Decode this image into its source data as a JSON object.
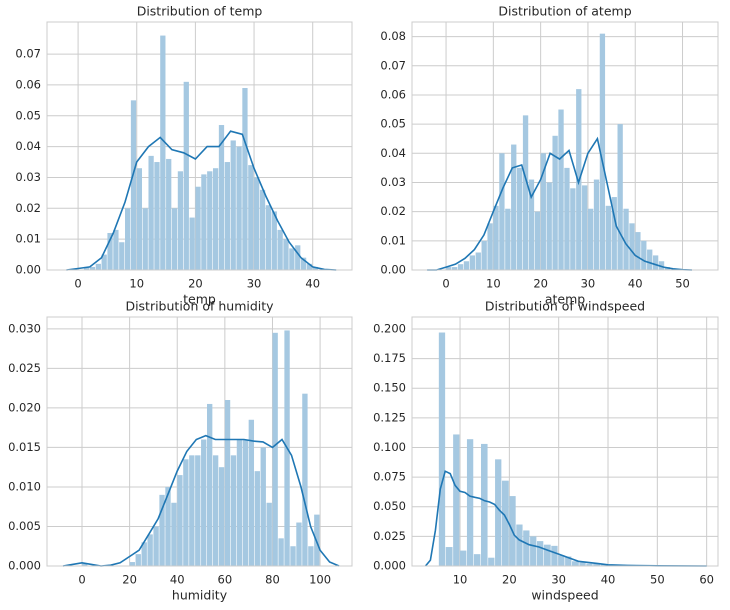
{
  "chart_data": [
    {
      "type": "histogram",
      "title": "Distribution of temp",
      "xlabel": "temp",
      "color": "#a5c8e1",
      "line_color": "#1f77b4",
      "grid": true,
      "xlim": [
        -5.3,
        46.7
      ],
      "ylim": [
        0,
        0.0804
      ],
      "xticks": [
        0,
        10,
        20,
        30,
        40
      ],
      "yticks": [
        {
          "value": 0,
          "label": "0.00"
        },
        {
          "value": 0.01,
          "label": "0.01"
        },
        {
          "value": 0.02,
          "label": "0.02"
        },
        {
          "value": 0.03,
          "label": "0.03"
        },
        {
          "value": 0.04,
          "label": "0.04"
        },
        {
          "value": 0.05,
          "label": "0.05"
        },
        {
          "value": 0.06,
          "label": "0.06"
        },
        {
          "value": 0.07,
          "label": "0.07"
        }
      ],
      "bins": [
        1,
        2,
        3,
        4,
        5,
        6,
        7,
        8,
        9,
        10,
        11,
        12,
        13,
        14,
        15,
        16,
        17,
        18,
        19,
        20,
        21,
        22,
        23,
        24,
        25,
        26,
        27,
        28,
        29,
        30,
        31,
        32,
        33,
        34,
        35,
        36,
        37,
        38,
        39,
        40,
        41
      ],
      "values": [
        0.001,
        0.001,
        0.002,
        0.005,
        0.012,
        0.013,
        0.009,
        0.02,
        0.055,
        0.033,
        0.02,
        0.037,
        0.035,
        0.076,
        0.036,
        0.02,
        0.032,
        0.061,
        0.017,
        0.027,
        0.031,
        0.032,
        0.033,
        0.047,
        0.035,
        0.042,
        0.04,
        0.059,
        0.034,
        0.03,
        0.026,
        0.021,
        0.019,
        0.013,
        0.01,
        0.007,
        0.008,
        0.004,
        0.002,
        0.001
      ],
      "kde": {
        "x": [
          -2,
          0,
          2,
          4,
          6,
          8,
          10,
          12,
          14,
          16,
          18,
          20,
          22,
          24,
          26,
          28,
          30,
          32,
          34,
          36,
          38,
          40,
          42,
          44
        ],
        "y": [
          0,
          0.0005,
          0.001,
          0.004,
          0.012,
          0.022,
          0.035,
          0.04,
          0.043,
          0.039,
          0.038,
          0.036,
          0.04,
          0.04,
          0.045,
          0.044,
          0.033,
          0.024,
          0.016,
          0.009,
          0.004,
          0.001,
          0.0002,
          0
        ]
      }
    },
    {
      "type": "histogram",
      "title": "Distribution of atemp",
      "xlabel": "atemp",
      "color": "#a5c8e1",
      "line_color": "#1f77b4",
      "grid": true,
      "xlim": [
        -7.2,
        57.5
      ],
      "ylim": [
        0,
        0.085
      ],
      "xticks": [
        0,
        10,
        20,
        30,
        40,
        50
      ],
      "yticks": [
        {
          "value": 0,
          "label": "0.00"
        },
        {
          "value": 0.01,
          "label": "0.01"
        },
        {
          "value": 0.02,
          "label": "0.02"
        },
        {
          "value": 0.03,
          "label": "0.03"
        },
        {
          "value": 0.04,
          "label": "0.04"
        },
        {
          "value": 0.05,
          "label": "0.05"
        },
        {
          "value": 0.06,
          "label": "0.06"
        },
        {
          "value": 0.07,
          "label": "0.07"
        },
        {
          "value": 0.08,
          "label": "0.08"
        }
      ],
      "bins": [
        0,
        1.25,
        2.5,
        3.75,
        5,
        6.25,
        7.5,
        8.75,
        10,
        11.25,
        12.5,
        13.75,
        15,
        16.25,
        17.5,
        18.75,
        20,
        21.25,
        22.5,
        23.75,
        25,
        26.25,
        27.5,
        28.75,
        30,
        31.25,
        32.5,
        33.75,
        35,
        36.25,
        37.5,
        38.75,
        40,
        41.25,
        42.5,
        43.75,
        45,
        46.25,
        47.5
      ],
      "values": [
        0.001,
        0.001,
        0.002,
        0.003,
        0.005,
        0.006,
        0.01,
        0.016,
        0.022,
        0.04,
        0.021,
        0.043,
        0.035,
        0.053,
        0.031,
        0.02,
        0.04,
        0.03,
        0.046,
        0.055,
        0.035,
        0.028,
        0.062,
        0.029,
        0.021,
        0.031,
        0.081,
        0.022,
        0.025,
        0.05,
        0.021,
        0.016,
        0.013,
        0.01,
        0.007,
        0.005,
        0.003,
        0.001
      ],
      "kde": {
        "x": [
          -4,
          -2,
          0,
          2,
          4,
          6,
          8,
          10,
          12,
          14,
          16,
          18,
          20,
          22,
          24,
          26,
          28,
          30,
          32,
          34,
          36,
          38,
          40,
          42,
          44,
          46,
          48,
          50,
          52
        ],
        "y": [
          0,
          0,
          0.001,
          0.002,
          0.004,
          0.007,
          0.012,
          0.02,
          0.028,
          0.035,
          0.036,
          0.025,
          0.031,
          0.04,
          0.038,
          0.041,
          0.03,
          0.04,
          0.045,
          0.03,
          0.015,
          0.009,
          0.005,
          0.003,
          0.002,
          0.001,
          0.0004,
          0.0001,
          0
        ]
      }
    },
    {
      "type": "histogram",
      "title": "Distribution of humidity",
      "xlabel": "humidity",
      "color": "#a5c8e1",
      "line_color": "#1f77b4",
      "grid": true,
      "xlim": [
        -14.7,
        113.4
      ],
      "ylim": [
        0,
        0.0315
      ],
      "xticks": [
        0,
        20,
        40,
        60,
        80,
        100
      ],
      "yticks": [
        {
          "value": 0,
          "label": "0.000"
        },
        {
          "value": 0.005,
          "label": "0.005"
        },
        {
          "value": 0.01,
          "label": "0.010"
        },
        {
          "value": 0.015,
          "label": "0.015"
        },
        {
          "value": 0.02,
          "label": "0.020"
        },
        {
          "value": 0.025,
          "label": "0.025"
        },
        {
          "value": 0.03,
          "label": "0.030"
        }
      ],
      "bins": [
        0,
        2.5,
        5,
        7.5,
        10,
        12.5,
        15,
        17.5,
        20,
        22.5,
        25,
        27.5,
        30,
        32.5,
        35,
        37.5,
        40,
        42.5,
        45,
        47.5,
        50,
        52.5,
        55,
        57.5,
        60,
        62.5,
        65,
        67.5,
        70,
        72.5,
        75,
        77.5,
        80,
        82.5,
        85,
        87.5,
        90,
        92.5,
        95,
        97.5,
        100
      ],
      "values": [
        0.0003,
        0,
        0,
        0,
        0,
        0,
        0,
        0,
        0.0005,
        0.0015,
        0.003,
        0.004,
        0.005,
        0.009,
        0.01,
        0.008,
        0.0115,
        0.0135,
        0.014,
        0.014,
        0.016,
        0.0205,
        0.014,
        0.0125,
        0.021,
        0.014,
        0.016,
        0.016,
        0.0185,
        0.012,
        0.015,
        0.008,
        0.0295,
        0.0035,
        0.0298,
        0.0025,
        0.0055,
        0.0218,
        0.0025,
        0.0065
      ],
      "kde": {
        "x": [
          -8,
          -4,
          0,
          4,
          8,
          12,
          16,
          20,
          24,
          28,
          32,
          36,
          40,
          44,
          48,
          52,
          56,
          60,
          64,
          68,
          72,
          76,
          80,
          84,
          88,
          92,
          96,
          100,
          104,
          108
        ],
        "y": [
          0,
          0.0002,
          0.0004,
          0.0002,
          0,
          0.0001,
          0.0004,
          0.0012,
          0.002,
          0.004,
          0.006,
          0.009,
          0.012,
          0.0145,
          0.016,
          0.0165,
          0.016,
          0.016,
          0.016,
          0.016,
          0.0158,
          0.0157,
          0.015,
          0.016,
          0.014,
          0.01,
          0.005,
          0.002,
          0.0005,
          0
        ]
      }
    },
    {
      "type": "histogram",
      "title": "Distribution of windspeed",
      "xlabel": "windspeed",
      "color": "#a5c8e1",
      "line_color": "#1f77b4",
      "grid": true,
      "xlim": [
        0.26,
        62.3
      ],
      "ylim": [
        0,
        0.2101
      ],
      "xticks": [
        10,
        20,
        30,
        40,
        50,
        60
      ],
      "yticks": [
        {
          "value": 0,
          "label": "0.000"
        },
        {
          "value": 0.025,
          "label": "0.025"
        },
        {
          "value": 0.05,
          "label": "0.050"
        },
        {
          "value": 0.075,
          "label": "0.075"
        },
        {
          "value": 0.1,
          "label": "0.100"
        },
        {
          "value": 0.125,
          "label": "0.125"
        },
        {
          "value": 0.15,
          "label": "0.150"
        },
        {
          "value": 0.175,
          "label": "0.175"
        },
        {
          "value": 0.2,
          "label": "0.200"
        }
      ],
      "bins": [
        5.7,
        7.1,
        8.6,
        10,
        11.4,
        12.8,
        14.25,
        15.7,
        17.1,
        18.5,
        20,
        21.4,
        22.8,
        24.2,
        25.6,
        27,
        28.5,
        29.9,
        31.3,
        32.7,
        34.2,
        35.6,
        37,
        38.5,
        39.9,
        41.3,
        42.7,
        44.2,
        45.6
      ],
      "values": [
        0.197,
        0.016,
        0.111,
        0.013,
        0.107,
        0.01,
        0.103,
        0.007,
        0.09,
        0.072,
        0.059,
        0.035,
        0.03,
        0.025,
        0.021,
        0.018,
        0.017,
        0.009,
        0.008,
        0.004,
        0.003,
        0.002,
        0.002,
        0.0015,
        0.001,
        0.0005,
        0.0002,
        0.0001
      ],
      "kde": {
        "x": [
          3,
          4,
          5,
          6,
          7,
          8,
          9,
          10,
          11,
          12,
          13,
          14,
          15,
          16,
          17,
          18,
          19,
          20,
          21,
          22,
          24,
          26,
          28,
          30,
          32,
          34,
          36,
          38,
          40,
          44,
          50,
          60
        ],
        "y": [
          0,
          0.005,
          0.03,
          0.065,
          0.08,
          0.078,
          0.068,
          0.063,
          0.062,
          0.059,
          0.058,
          0.057,
          0.055,
          0.054,
          0.052,
          0.047,
          0.043,
          0.035,
          0.026,
          0.022,
          0.018,
          0.016,
          0.013,
          0.01,
          0.007,
          0.004,
          0.003,
          0.002,
          0.001,
          0.0005,
          0.0002,
          0
        ]
      }
    }
  ]
}
